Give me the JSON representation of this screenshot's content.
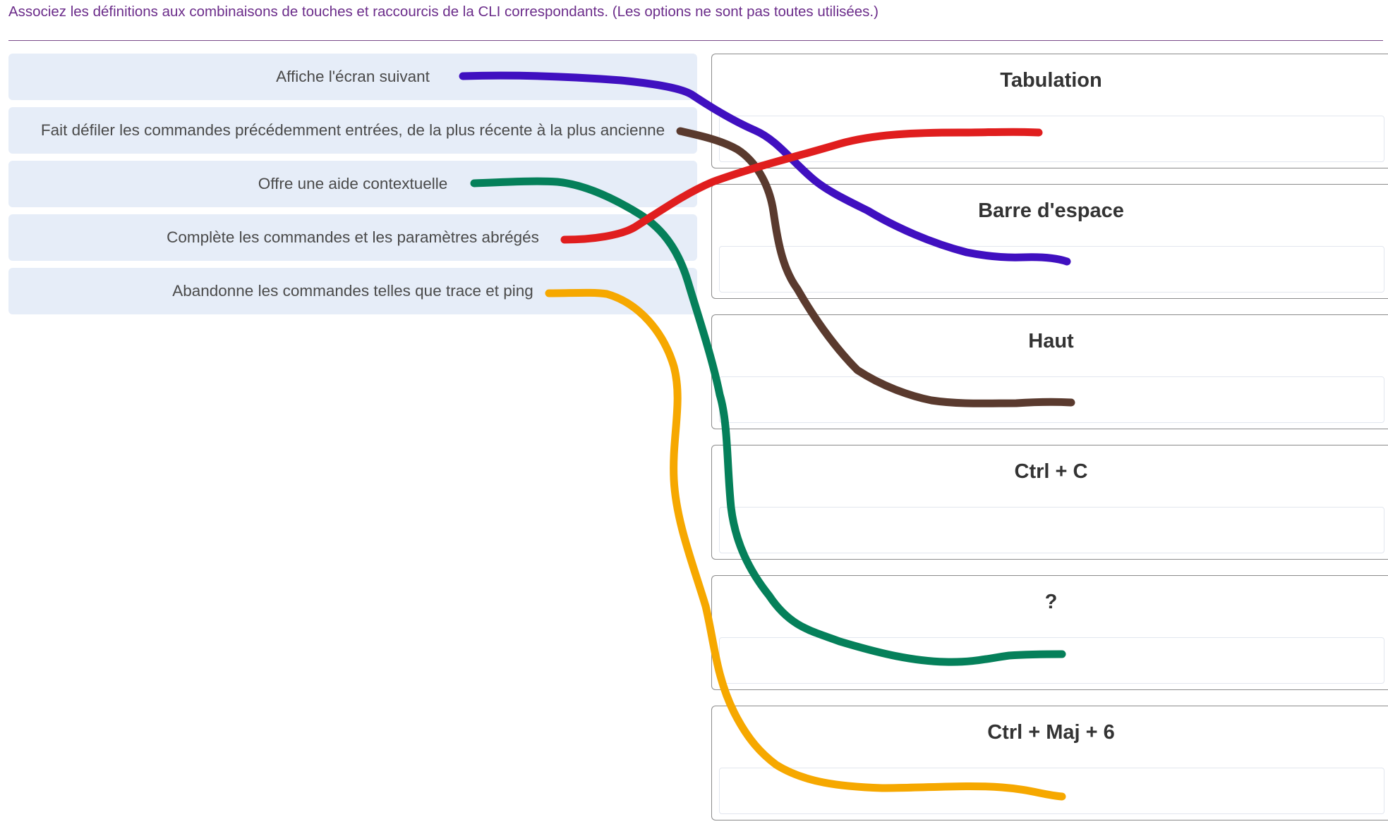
{
  "instruction": "Associez les définitions aux combinaisons de touches et raccourcis de la CLI correspondants. (Les options ne sont pas toutes utilisées.)",
  "definitions": [
    {
      "label": "Affiche l'écran suivant"
    },
    {
      "label": "Fait défiler les commandes précédemment entrées, de la plus récente à la plus ancienne"
    },
    {
      "label": "Offre une aide contextuelle"
    },
    {
      "label": "Complète les commandes et les paramètres abrégés"
    },
    {
      "label": "Abandonne les commandes telles que trace et ping"
    }
  ],
  "targets": [
    {
      "label": "Tabulation"
    },
    {
      "label": "Barre d'espace"
    },
    {
      "label": "Haut"
    },
    {
      "label": "Ctrl + C"
    },
    {
      "label": "?"
    },
    {
      "label": "Ctrl + Maj + 6"
    }
  ],
  "annotations": {
    "colors": {
      "purple": "#4010c0",
      "brown": "#5a3a2e",
      "green": "#05805a",
      "red": "#e01e1e",
      "orange": "#f6a800"
    }
  }
}
